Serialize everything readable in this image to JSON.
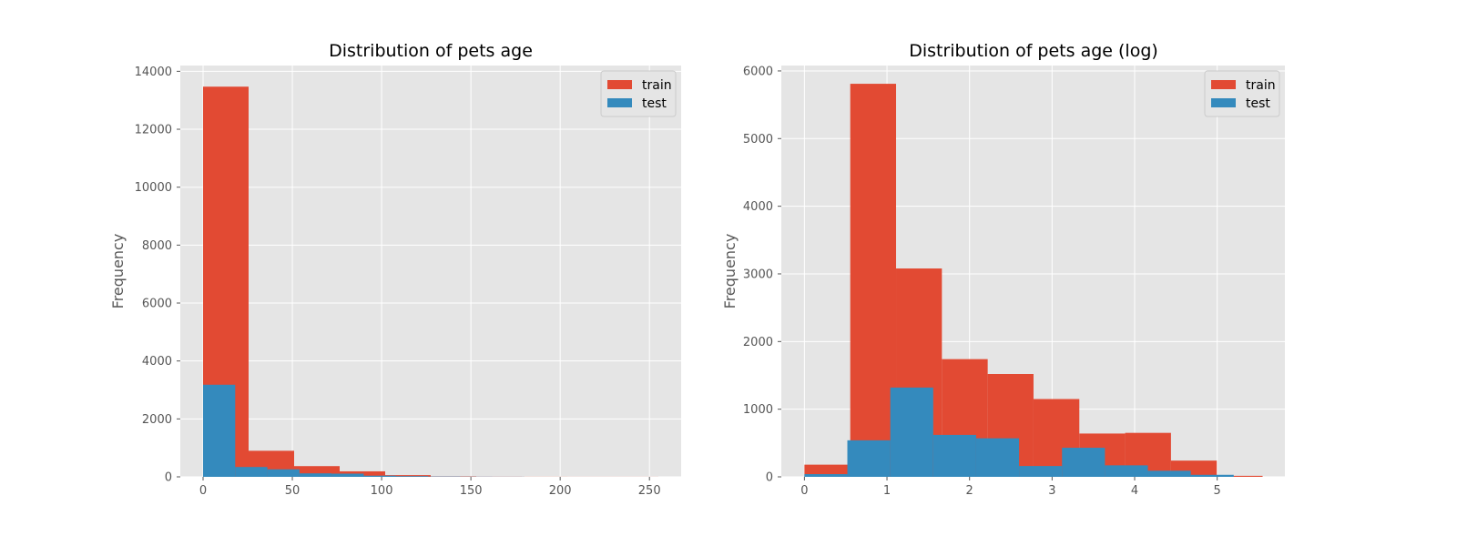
{
  "chart_data": [
    {
      "type": "bar",
      "title": "Distribution of pets age",
      "xlabel": "",
      "ylabel": "Frequency",
      "xlim": [
        -12.75,
        267.75
      ],
      "ylim": [
        0,
        14200
      ],
      "xticks": [
        0,
        50,
        100,
        150,
        200,
        250
      ],
      "yticks": [
        0,
        2000,
        4000,
        6000,
        8000,
        10000,
        12000,
        14000
      ],
      "grid": true,
      "legend": "top-right",
      "series": [
        {
          "name": "train",
          "color": "#E24A33",
          "bins": [
            [
              0,
              25.5,
              13470
            ],
            [
              25.5,
              51,
              900
            ],
            [
              51,
              76.5,
              370
            ],
            [
              76.5,
              102,
              190
            ],
            [
              102,
              127.5,
              60
            ],
            [
              127.5,
              153,
              15
            ],
            [
              153,
              178.5,
              5
            ],
            [
              178.5,
              204,
              3
            ],
            [
              204,
              229.5,
              2
            ],
            [
              229.5,
              255,
              2
            ]
          ]
        },
        {
          "name": "test",
          "color": "#348ABD",
          "bins": [
            [
              0,
              18,
              3180
            ],
            [
              18,
              36,
              340
            ],
            [
              36,
              54,
              260
            ],
            [
              54,
              72,
              120
            ],
            [
              72,
              90,
              110
            ],
            [
              90,
              108,
              40
            ],
            [
              108,
              126,
              25
            ],
            [
              126,
              144,
              10
            ],
            [
              144,
              162,
              5
            ],
            [
              162,
              180,
              3
            ]
          ]
        }
      ]
    },
    {
      "type": "bar",
      "title": "Distribution of pets age (log)",
      "xlabel": "",
      "ylabel": "Frequency",
      "xlim": [
        -0.28,
        5.82
      ],
      "ylim": [
        0,
        6080
      ],
      "xticks": [
        0,
        1,
        2,
        3,
        4,
        5
      ],
      "yticks": [
        0,
        1000,
        2000,
        3000,
        4000,
        5000,
        6000
      ],
      "grid": true,
      "legend": "top-right",
      "series": [
        {
          "name": "train",
          "color": "#E24A33",
          "bins": [
            [
              0,
              0.555,
              180
            ],
            [
              0.555,
              1.11,
              5810
            ],
            [
              1.11,
              1.665,
              3080
            ],
            [
              1.665,
              2.22,
              1740
            ],
            [
              2.22,
              2.775,
              1520
            ],
            [
              2.775,
              3.33,
              1150
            ],
            [
              3.33,
              3.885,
              640
            ],
            [
              3.885,
              4.44,
              650
            ],
            [
              4.44,
              4.995,
              240
            ],
            [
              4.995,
              5.55,
              15
            ]
          ]
        },
        {
          "name": "test",
          "color": "#348ABD",
          "bins": [
            [
              0,
              0.52,
              40
            ],
            [
              0.52,
              1.04,
              540
            ],
            [
              1.04,
              1.56,
              1320
            ],
            [
              1.56,
              2.08,
              620
            ],
            [
              2.08,
              2.6,
              570
            ],
            [
              2.6,
              3.12,
              160
            ],
            [
              3.12,
              3.64,
              430
            ],
            [
              3.64,
              4.16,
              170
            ],
            [
              4.16,
              4.68,
              90
            ],
            [
              4.68,
              5.2,
              30
            ]
          ]
        }
      ]
    }
  ]
}
